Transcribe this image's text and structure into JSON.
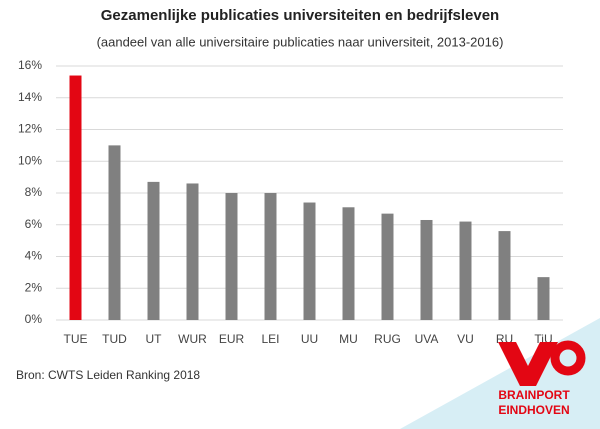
{
  "chart_data": {
    "type": "bar",
    "title": "Gezamenlijke publicaties universiteiten en bedrijfsleven",
    "subtitle": "(aandeel van alle universitaire publicaties naar universiteit, 2013-2016)",
    "categories": [
      "TUE",
      "TUD",
      "UT",
      "WUR",
      "EUR",
      "LEI",
      "UU",
      "MU",
      "RUG",
      "UVA",
      "VU",
      "RU",
      "TiU"
    ],
    "values": [
      15.4,
      11.0,
      8.7,
      8.6,
      8.0,
      8.0,
      7.4,
      7.1,
      6.7,
      6.3,
      6.2,
      5.6,
      2.7
    ],
    "colors": [
      "#e30613",
      "#808080",
      "#808080",
      "#808080",
      "#808080",
      "#808080",
      "#808080",
      "#808080",
      "#808080",
      "#808080",
      "#808080",
      "#808080",
      "#808080"
    ],
    "ylim": [
      0,
      16
    ],
    "yticks": [
      {
        "value": 0,
        "label": "0%"
      },
      {
        "value": 2,
        "label": "2%"
      },
      {
        "value": 4,
        "label": "4%"
      },
      {
        "value": 6,
        "label": "6%"
      },
      {
        "value": 8,
        "label": "8%"
      },
      {
        "value": 10,
        "label": "10%"
      },
      {
        "value": 12,
        "label": "12%"
      },
      {
        "value": 14,
        "label": "14%"
      },
      {
        "value": 16,
        "label": "16%"
      }
    ],
    "grid": true,
    "source": "Bron: CWTS Leiden Ranking 2018"
  },
  "logo": {
    "line1": "BRAINPORT",
    "line2": "EINDHOVEN"
  }
}
